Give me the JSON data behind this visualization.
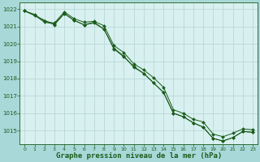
{
  "bg_outer": "#a8d8d8",
  "bg_plot": "#d8f0f0",
  "grid_color": "#b8d8d8",
  "line_color": "#1a5c1a",
  "xlabel": "Graphe pression niveau de la mer (hPa)",
  "xlim": [
    -0.5,
    23.5
  ],
  "ylim": [
    1014.2,
    1022.4
  ],
  "yticks": [
    1015,
    1016,
    1017,
    1018,
    1019,
    1020,
    1021,
    1022
  ],
  "xticks": [
    0,
    1,
    2,
    3,
    4,
    5,
    6,
    7,
    8,
    9,
    10,
    11,
    12,
    13,
    14,
    15,
    16,
    17,
    18,
    19,
    20,
    21,
    22,
    23
  ],
  "line1_x": [
    0,
    1,
    2,
    3,
    4,
    5,
    6,
    7,
    8,
    9,
    10,
    11,
    12,
    13,
    14,
    15,
    16,
    17,
    18,
    19,
    20,
    21,
    22,
    23
  ],
  "line1_y": [
    1021.9,
    1021.7,
    1021.3,
    1021.2,
    1021.85,
    1021.45,
    1021.25,
    1021.3,
    1021.05,
    1019.9,
    1019.5,
    1018.85,
    1018.5,
    1018.05,
    1017.5,
    1016.2,
    1016.0,
    1015.65,
    1015.5,
    1014.8,
    1014.65,
    1014.85,
    1015.1,
    1015.05
  ],
  "line2_x": [
    0,
    3,
    4,
    5,
    6,
    7,
    8,
    9,
    10,
    11,
    12,
    13,
    14,
    15,
    16,
    17,
    18,
    19,
    20,
    21,
    22,
    23
  ],
  "line2_y": [
    1021.9,
    1021.1,
    1021.75,
    1021.35,
    1021.1,
    1021.25,
    1020.85,
    1019.75,
    1019.3,
    1018.65,
    1018.3,
    1017.75,
    1017.2,
    1016.0,
    1015.8,
    1015.45,
    1015.2,
    1014.55,
    1014.4,
    1014.6,
    1014.95,
    1014.9
  ],
  "line3_x": [
    0,
    1,
    2,
    3,
    4,
    5,
    6,
    7,
    8,
    9,
    10,
    11,
    12,
    13,
    14,
    15,
    16,
    17,
    18,
    19,
    20,
    21,
    22,
    23
  ],
  "line3_y": [
    1021.9,
    1021.65,
    1021.25,
    1021.15,
    1021.75,
    1021.35,
    1021.1,
    1021.2,
    1020.85,
    1019.7,
    1019.25,
    1018.7,
    1018.3,
    1017.75,
    1017.2,
    1016.0,
    1015.8,
    1015.45,
    1015.2,
    1014.55,
    1014.4,
    1014.6,
    1014.95,
    1014.9
  ]
}
